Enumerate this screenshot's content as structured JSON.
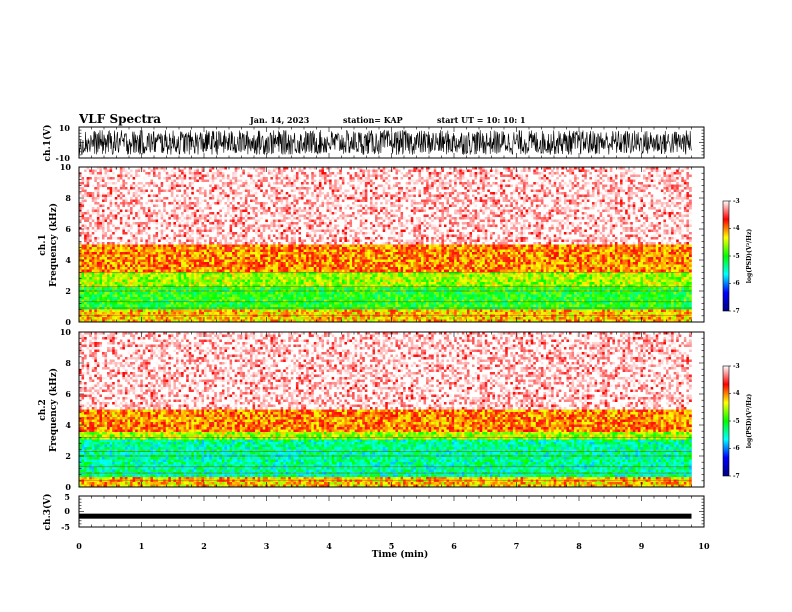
{
  "header": {
    "title": "VLF Spectra",
    "date": "Jan. 14, 2023",
    "station": "station= KAP",
    "start": "start  UT  =   10: 10: 1"
  },
  "chart_data": [
    {
      "type": "line",
      "name": "waveform-ch1",
      "ylabel": "ch.1(V)",
      "ylim": [
        -10,
        10
      ],
      "yticks": [
        "10",
        "-10"
      ],
      "xlim": [
        0,
        10
      ],
      "data_xlim": [
        0,
        9.8
      ],
      "description_of_signal": "noisy waveform spanning roughly -8 to +8 V"
    },
    {
      "type": "heatmap",
      "name": "spectrogram-ch1",
      "ylabel_top": "ch.1",
      "ylabel": "Frequency  (kHz)",
      "ylim": [
        0,
        10
      ],
      "yticks": [
        "0",
        "2",
        "4",
        "6",
        "8",
        "10"
      ],
      "xlim": [
        0,
        10
      ],
      "data_xlim": [
        0,
        9.8
      ],
      "bands_khz": [
        {
          "from": 0,
          "to": 0.8,
          "level": -4.2
        },
        {
          "from": 0.8,
          "to": 2.2,
          "level": -5.0
        },
        {
          "from": 2.2,
          "to": 3.2,
          "level": -4.6
        },
        {
          "from": 3.2,
          "to": 5.0,
          "level": -4.0
        },
        {
          "from": 5.0,
          "to": 10,
          "level": -3.3
        }
      ],
      "colorbar": {
        "ticks": [
          "-3",
          "-4",
          "-5",
          "-6",
          "-7"
        ],
        "range": [
          -7,
          -3
        ],
        "label": "log(PSD)(V²/Hz)"
      }
    },
    {
      "type": "heatmap",
      "name": "spectrogram-ch2",
      "ylabel_top": "ch.2",
      "ylabel": "Frequency  (kHz)",
      "ylim": [
        0,
        10
      ],
      "yticks": [
        "0",
        "2",
        "4",
        "6",
        "8",
        "10"
      ],
      "xlim": [
        0,
        10
      ],
      "data_xlim": [
        0,
        9.8
      ],
      "bands_khz": [
        {
          "from": 0,
          "to": 0.7,
          "level": -4.2
        },
        {
          "from": 0.7,
          "to": 3.0,
          "level": -5.4
        },
        {
          "from": 3.0,
          "to": 3.5,
          "level": -4.6
        },
        {
          "from": 3.5,
          "to": 5.0,
          "level": -4.0
        },
        {
          "from": 5.0,
          "to": 10,
          "level": -3.3
        }
      ],
      "colorbar": {
        "ticks": [
          "-3",
          "-4",
          "-5",
          "-6",
          "-7"
        ],
        "range": [
          -7,
          -3
        ],
        "label": "log(PSD)(V²/Hz)"
      }
    },
    {
      "type": "line",
      "name": "waveform-ch3",
      "ylabel": "ch.3(V)",
      "ylim": [
        -5,
        5
      ],
      "yticks": [
        "5",
        "0",
        "-5"
      ],
      "xlim": [
        0,
        10
      ],
      "data_xlim": [
        0,
        9.8
      ],
      "level_v": -1.5
    }
  ],
  "xaxis": {
    "label": "Time  (min)",
    "ticks": [
      "0",
      "1",
      "2",
      "3",
      "4",
      "5",
      "6",
      "7",
      "8",
      "9",
      "10"
    ]
  },
  "colors": {
    "spectrum": [
      "#000080",
      "#0000ff",
      "#00ffff",
      "#00ff00",
      "#ffff00",
      "#ff0000",
      "#ffffff"
    ],
    "trace": "#000000"
  }
}
